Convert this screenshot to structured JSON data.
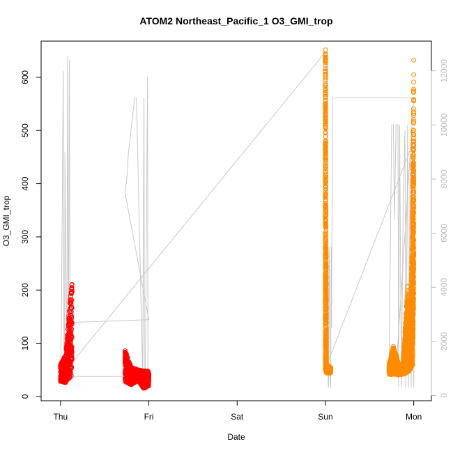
{
  "chart_data": {
    "type": "scatter",
    "title": "ATOM2 Northeast_Pacific_1 O3_GMI_trop",
    "xlabel": "Date",
    "ylabel": "O3_GMI_trop",
    "x_ticks": [
      "Thu",
      "Fri",
      "Sat",
      "Sun",
      "Mon"
    ],
    "xlim_days": [
      -0.22,
      4.2
    ],
    "ylim": [
      -8,
      668
    ],
    "y_ticks": [
      0,
      100,
      200,
      300,
      400,
      500,
      600
    ],
    "y2lim": [
      -195,
      13100
    ],
    "y2_ticks": [
      0,
      2000,
      4000,
      6000,
      8000,
      10000,
      12000
    ],
    "grid": false,
    "colors": {
      "red": "#ff0000",
      "orange": "#ff8c00",
      "gray": "#c8c8c8"
    },
    "series": [
      {
        "color": "red",
        "segments": [
          {
            "x": [
              0.0,
              0.06,
              0.13
            ],
            "min": [
              28,
              26,
              40
            ],
            "max": [
              60,
              80,
              225
            ]
          },
          {
            "x": [
              0.73,
              0.8,
              0.88,
              0.94,
              1.0
            ],
            "min": [
              28,
              22,
              30,
              15,
              20
            ],
            "max": [
              88,
              55,
              50,
              48,
              48
            ]
          }
        ]
      },
      {
        "color": "orange",
        "segments": [
          {
            "x": [
              3.0,
              3.001,
              3.01,
              3.06
            ],
            "min": [
              48,
              50,
              44,
              44
            ],
            "max": [
              655,
              640,
              60,
              55
            ]
          },
          {
            "x": [
              3.72,
              3.77,
              3.83,
              3.88,
              3.93,
              3.96,
              3.99,
              4.0
            ],
            "min": [
              40,
              42,
              40,
              42,
              45,
              50,
              60,
              200
            ],
            "max": [
              60,
              95,
              60,
              60,
              210,
              100,
              370,
              640
            ]
          }
        ]
      }
    ],
    "altitude_line": {
      "color": "gray",
      "x": [
        0.0,
        0.01,
        0.03,
        0.04,
        0.045,
        0.05,
        0.07,
        0.08,
        0.09,
        0.1,
        0.11,
        0.13,
        0.135,
        1.0,
        0.73,
        0.75,
        0.77,
        0.84,
        0.86,
        0.93,
        0.945,
        0.95,
        0.96,
        0.985,
        0.99,
        1.0,
        0.0,
        3.0,
        3.01,
        3.015,
        3.03,
        3.035,
        3.04,
        3.045,
        3.05,
        3.06,
        3.065,
        3.07,
        3.08,
        3.085,
        3.09,
        4.0,
        3.8,
        3.72,
        3.75,
        3.77,
        3.78,
        3.8,
        3.82,
        3.83,
        3.84,
        3.86,
        3.88,
        3.9,
        3.91,
        3.93,
        3.94,
        3.96,
        3.97,
        3.99,
        4.0,
        4.01,
        3.0
      ],
      "y": [
        600,
        2700,
        12000,
        1000,
        600,
        9000,
        500,
        12500,
        600,
        12400,
        600,
        700,
        2700,
        2800,
        7500,
        8000,
        9000,
        11000,
        11000,
        700,
        11000,
        500,
        700,
        11800,
        700,
        700,
        700,
        12700,
        12500,
        11000,
        500,
        300,
        5500,
        4500,
        600,
        300,
        5500,
        2500,
        11000,
        11000,
        11000,
        11000,
        900,
        900,
        10000,
        10000,
        6500,
        10000,
        10000,
        300,
        10000,
        300,
        7000,
        9800,
        300,
        10000,
        300,
        9000,
        300,
        9000,
        300,
        9500,
        1000
      ]
    }
  }
}
